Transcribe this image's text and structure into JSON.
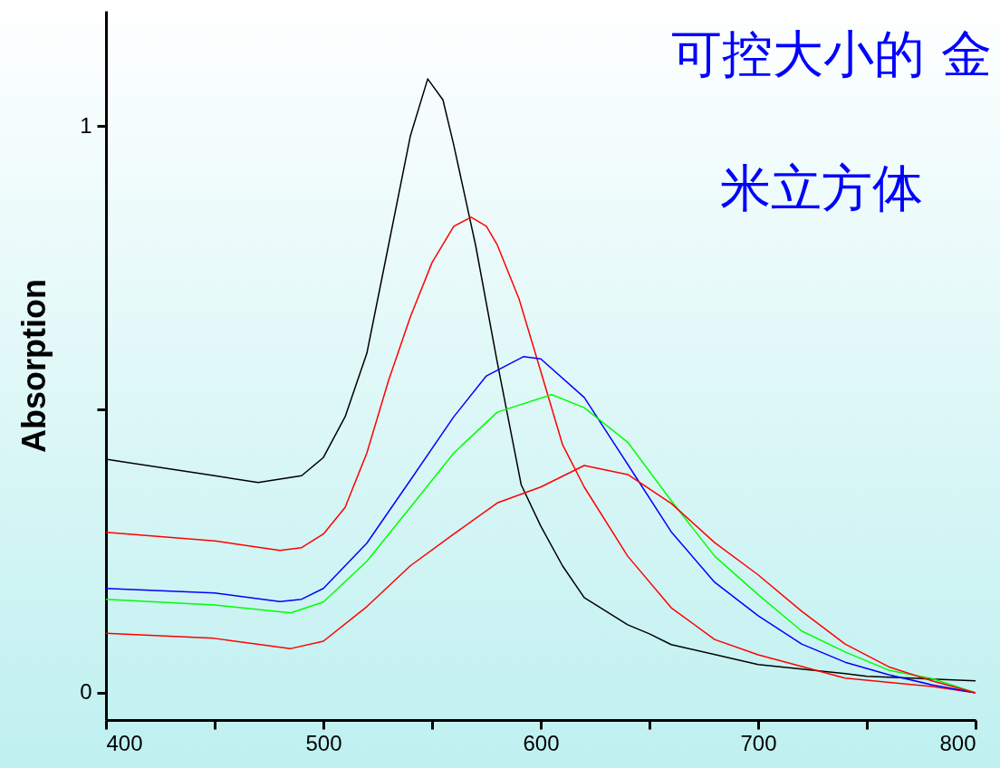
{
  "chart_data": {
    "type": "line",
    "ylabel": "Absorption",
    "annotations": [
      "可控大小的 金",
      "米立方体"
    ],
    "xlim": [
      400,
      800
    ],
    "ylim": [
      -0.048,
      1.203
    ],
    "xticks": [
      400,
      {
        "value": 450,
        "label": null
      },
      500,
      {
        "value": 550,
        "label": null
      },
      600,
      {
        "value": 650,
        "label": null
      },
      700,
      {
        "value": 750,
        "label": null
      },
      800
    ],
    "yticks": [
      0,
      {
        "value": 0.5,
        "label": null
      },
      1
    ],
    "series": [
      {
        "color": "#000000",
        "x": [
          400,
          450,
          470,
          490,
          500,
          510,
          520,
          530,
          540,
          548,
          555,
          560,
          570,
          580,
          591,
          600,
          610,
          620,
          640,
          650,
          660,
          700,
          740,
          750,
          800
        ],
        "values": [
          0.412,
          0.383,
          0.371,
          0.383,
          0.415,
          0.487,
          0.599,
          0.79,
          0.982,
          1.083,
          1.046,
          0.966,
          0.79,
          0.583,
          0.367,
          0.294,
          0.224,
          0.168,
          0.12,
          0.104,
          0.085,
          0.05,
          0.034,
          0.029,
          0.021
        ]
      },
      {
        "color": "#ff0000",
        "x": [
          400,
          450,
          480,
          490,
          500,
          510,
          520,
          530,
          540,
          550,
          560,
          568,
          575,
          580,
          590,
          600,
          610,
          620,
          640,
          660,
          680,
          700,
          740,
          780,
          800
        ],
        "values": [
          0.283,
          0.268,
          0.251,
          0.256,
          0.28,
          0.327,
          0.423,
          0.551,
          0.663,
          0.759,
          0.823,
          0.839,
          0.823,
          0.79,
          0.695,
          0.567,
          0.438,
          0.363,
          0.241,
          0.15,
          0.094,
          0.067,
          0.026,
          0.011,
          0.0
        ]
      },
      {
        "color": "#0000ff",
        "x": [
          400,
          450,
          480,
          490,
          500,
          520,
          540,
          560,
          575,
          592,
          600,
          620,
          640,
          660,
          680,
          700,
          720,
          740,
          760,
          780,
          800
        ],
        "values": [
          0.184,
          0.176,
          0.161,
          0.165,
          0.184,
          0.264,
          0.375,
          0.487,
          0.559,
          0.593,
          0.589,
          0.521,
          0.403,
          0.284,
          0.195,
          0.136,
          0.086,
          0.054,
          0.032,
          0.014,
          0.0
        ]
      },
      {
        "color": "#00ff00",
        "x": [
          400,
          450,
          485,
          500,
          520,
          540,
          560,
          580,
          605,
          620,
          640,
          660,
          680,
          700,
          720,
          740,
          760,
          780,
          800
        ],
        "values": [
          0.165,
          0.155,
          0.141,
          0.16,
          0.232,
          0.327,
          0.423,
          0.495,
          0.526,
          0.503,
          0.442,
          0.339,
          0.241,
          0.173,
          0.109,
          0.072,
          0.04,
          0.025,
          0.0
        ]
      },
      {
        "color": "#ff0000",
        "x": [
          400,
          450,
          485,
          500,
          520,
          540,
          560,
          580,
          600,
          620,
          640,
          660,
          680,
          700,
          720,
          740,
          760,
          780,
          800
        ],
        "values": [
          0.105,
          0.096,
          0.078,
          0.091,
          0.152,
          0.224,
          0.28,
          0.335,
          0.363,
          0.401,
          0.385,
          0.334,
          0.265,
          0.208,
          0.144,
          0.086,
          0.046,
          0.021,
          0.0
        ]
      }
    ]
  }
}
